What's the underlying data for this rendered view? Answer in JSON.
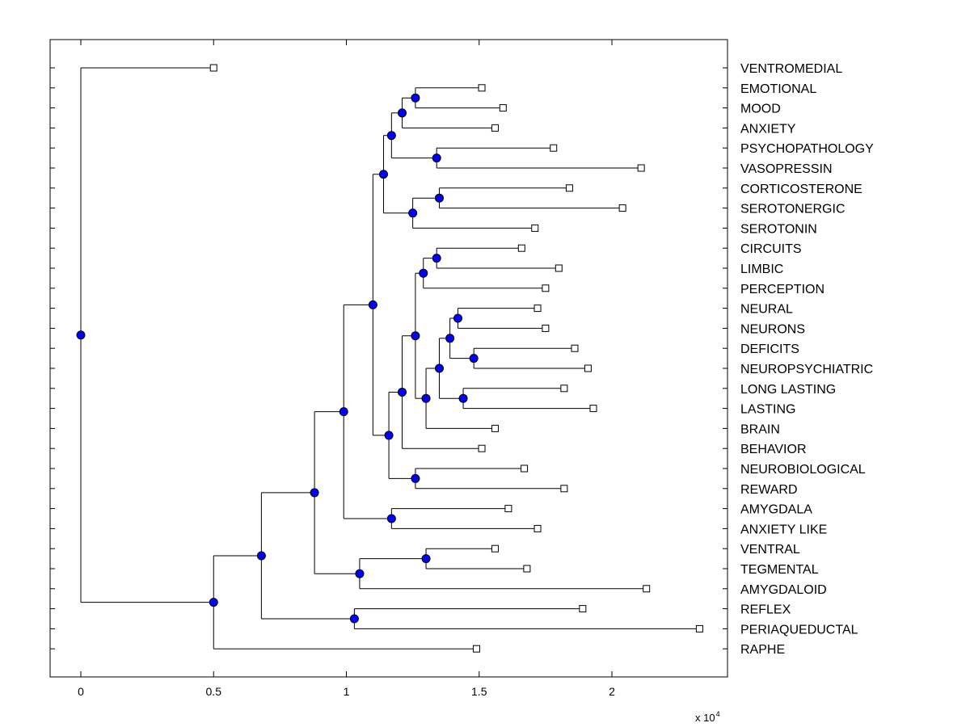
{
  "chart_data": {
    "type": "dendrogram",
    "xlabel": "",
    "ylabel": "",
    "xlim": [
      -0.12,
      2.45
    ],
    "x_scale_label": "x 10",
    "x_scale_exponent": "4",
    "x_ticks": [
      0,
      0.5,
      1,
      1.5,
      2
    ],
    "x_tick_labels": [
      "0",
      "0.5",
      "1",
      "1.5",
      "2"
    ],
    "leaves": [
      {
        "label": "VENTROMEDIAL",
        "x": 0.5
      },
      {
        "label": "EMOTIONAL",
        "x": 1.51
      },
      {
        "label": "MOOD",
        "x": 1.59
      },
      {
        "label": "ANXIETY",
        "x": 1.56
      },
      {
        "label": "PSYCHOPATHOLOGY",
        "x": 1.78
      },
      {
        "label": "VASOPRESSIN",
        "x": 2.11
      },
      {
        "label": "CORTICOSTERONE",
        "x": 1.84
      },
      {
        "label": "SEROTONERGIC",
        "x": 2.04
      },
      {
        "label": "SEROTONIN",
        "x": 1.71
      },
      {
        "label": "CIRCUITS",
        "x": 1.66
      },
      {
        "label": "LIMBIC",
        "x": 1.8
      },
      {
        "label": "PERCEPTION",
        "x": 1.75
      },
      {
        "label": "NEURAL",
        "x": 1.72
      },
      {
        "label": "NEURONS",
        "x": 1.75
      },
      {
        "label": "DEFICITS",
        "x": 1.86
      },
      {
        "label": "NEUROPSYCHIATRIC",
        "x": 1.91
      },
      {
        "label": "LONG LASTING",
        "x": 1.82
      },
      {
        "label": "LASTING",
        "x": 1.93
      },
      {
        "label": "BRAIN",
        "x": 1.56
      },
      {
        "label": "BEHAVIOR",
        "x": 1.51
      },
      {
        "label": "NEUROBIOLOGICAL",
        "x": 1.67
      },
      {
        "label": "REWARD",
        "x": 1.82
      },
      {
        "label": "AMYGDALA",
        "x": 1.61
      },
      {
        "label": "ANXIETY LIKE",
        "x": 1.72
      },
      {
        "label": "VENTRAL",
        "x": 1.56
      },
      {
        "label": "TEGMENTAL",
        "x": 1.68
      },
      {
        "label": "AMYGDALOID",
        "x": 2.13
      },
      {
        "label": "REFLEX",
        "x": 1.89
      },
      {
        "label": "PERIAQUEDUCTAL",
        "x": 2.33
      },
      {
        "label": "RAPHE",
        "x": 1.49
      }
    ],
    "merges": [
      {
        "id": "n1",
        "x": 1.26,
        "children": [
          "L1",
          "L2"
        ]
      },
      {
        "id": "n2",
        "x": 1.21,
        "children": [
          "n1",
          "L3"
        ]
      },
      {
        "id": "n3",
        "x": 1.34,
        "children": [
          "L4",
          "L5"
        ]
      },
      {
        "id": "n4",
        "x": 1.17,
        "children": [
          "n2",
          "n3"
        ]
      },
      {
        "id": "n5",
        "x": 1.35,
        "children": [
          "L6",
          "L7"
        ]
      },
      {
        "id": "n6",
        "x": 1.25,
        "children": [
          "n5",
          "L8"
        ]
      },
      {
        "id": "n7",
        "x": 1.14,
        "children": [
          "n4",
          "n6"
        ]
      },
      {
        "id": "n8",
        "x": 1.34,
        "children": [
          "L9",
          "L10"
        ]
      },
      {
        "id": "n9",
        "x": 1.29,
        "children": [
          "n8",
          "L11"
        ]
      },
      {
        "id": "n10",
        "x": 1.42,
        "children": [
          "L12",
          "L13"
        ]
      },
      {
        "id": "n11",
        "x": 1.48,
        "children": [
          "L14",
          "L15"
        ]
      },
      {
        "id": "n12",
        "x": 1.39,
        "children": [
          "n10",
          "n11"
        ]
      },
      {
        "id": "n13",
        "x": 1.44,
        "children": [
          "L16",
          "L17"
        ]
      },
      {
        "id": "n14",
        "x": 1.35,
        "children": [
          "n12",
          "n13"
        ]
      },
      {
        "id": "n15",
        "x": 1.3,
        "children": [
          "n14",
          "L18"
        ]
      },
      {
        "id": "n16",
        "x": 1.26,
        "children": [
          "n9",
          "n15"
        ]
      },
      {
        "id": "n17",
        "x": 1.21,
        "children": [
          "n16",
          "L19"
        ]
      },
      {
        "id": "n18",
        "x": 1.26,
        "children": [
          "L20",
          "L21"
        ]
      },
      {
        "id": "n19",
        "x": 1.16,
        "children": [
          "n17",
          "n18"
        ]
      },
      {
        "id": "n20",
        "x": 1.1,
        "children": [
          "n7",
          "n19"
        ]
      },
      {
        "id": "n21",
        "x": 1.17,
        "children": [
          "L22",
          "L23"
        ]
      },
      {
        "id": "n22",
        "x": 0.99,
        "children": [
          "n20",
          "n21"
        ]
      },
      {
        "id": "n23",
        "x": 1.3,
        "children": [
          "L24",
          "L25"
        ]
      },
      {
        "id": "n24",
        "x": 1.05,
        "children": [
          "n23",
          "L26"
        ]
      },
      {
        "id": "n25",
        "x": 0.88,
        "children": [
          "n22",
          "n24"
        ]
      },
      {
        "id": "n26",
        "x": 1.03,
        "children": [
          "L27",
          "L28"
        ]
      },
      {
        "id": "n27",
        "x": 0.68,
        "children": [
          "n25",
          "n26"
        ]
      },
      {
        "id": "n28",
        "x": 0.5,
        "children": [
          "n27",
          "L29"
        ]
      },
      {
        "id": "n29",
        "x": 0.0,
        "children": [
          "L0",
          "n28"
        ]
      }
    ],
    "colors": {
      "node": "#0000ff",
      "line": "#000000",
      "leaf_marker": "#ffffff"
    }
  }
}
